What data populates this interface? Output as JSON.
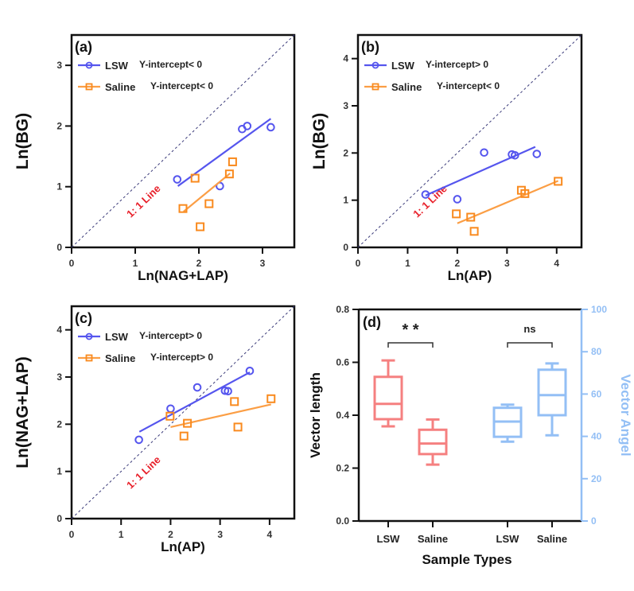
{
  "colors": {
    "lsw": "#5555ee",
    "saline": "#f98a1e",
    "saline_line": "#fb9e45",
    "one_line_dash": "#3b3b7a",
    "one_line_text": "#e8202a",
    "box_red": "#f58080",
    "box_blue": "#93bff5",
    "axis": "#111111"
  },
  "chart_data": [
    {
      "panel": "(a)",
      "type": "scatter",
      "xlabel": "Ln(NAG+LAP)",
      "ylabel": "Ln(BG)",
      "xlim": [
        0,
        3.5
      ],
      "ylim": [
        0,
        3.5
      ],
      "xticks": [
        0,
        1,
        2,
        3
      ],
      "yticks": [
        0,
        1,
        2,
        3
      ],
      "reference_line": {
        "label": "1: 1 Line",
        "slope": 1,
        "intercept": 0
      },
      "series": [
        {
          "name": "LSW",
          "marker": "circle",
          "note": "Y-intercept< 0",
          "points": [
            [
              1.66,
              1.12
            ],
            [
              2.33,
              1.01
            ],
            [
              2.68,
              1.95
            ],
            [
              2.76,
              2.0
            ],
            [
              3.13,
              1.98
            ]
          ],
          "fit": [
            [
              1.67,
              1.01
            ],
            [
              3.13,
              2.12
            ]
          ]
        },
        {
          "name": "Saline",
          "marker": "square",
          "note": "Y-intercept< 0",
          "points": [
            [
              1.94,
              1.14
            ],
            [
              1.75,
              0.64
            ],
            [
              2.02,
              0.34
            ],
            [
              2.16,
              0.72
            ],
            [
              2.48,
              1.21
            ],
            [
              2.53,
              1.41
            ]
          ],
          "fit": [
            [
              1.76,
              0.59
            ],
            [
              2.49,
              1.22
            ]
          ]
        }
      ]
    },
    {
      "panel": "(b)",
      "type": "scatter",
      "xlabel": "Ln(AP)",
      "ylabel": "Ln(BG)",
      "xlim": [
        0,
        4.5
      ],
      "ylim": [
        0,
        4.5
      ],
      "xticks": [
        0,
        1,
        2,
        3,
        4
      ],
      "yticks": [
        0,
        1,
        2,
        3,
        4
      ],
      "reference_line": {
        "label": "1: 1 Line",
        "slope": 1,
        "intercept": 0
      },
      "series": [
        {
          "name": "LSW",
          "marker": "circle",
          "note": "Y-intercept> 0",
          "points": [
            [
              1.36,
              1.12
            ],
            [
              2.0,
              1.02
            ],
            [
              2.54,
              2.01
            ],
            [
              3.1,
              1.97
            ],
            [
              3.16,
              1.95
            ],
            [
              3.6,
              1.98
            ]
          ],
          "fit": [
            [
              1.36,
              1.1
            ],
            [
              3.57,
              2.13
            ]
          ]
        },
        {
          "name": "Saline",
          "marker": "square",
          "note": "Y-intercept< 0",
          "points": [
            [
              1.98,
              0.71
            ],
            [
              2.27,
              0.64
            ],
            [
              2.34,
              0.34
            ],
            [
              3.29,
              1.21
            ],
            [
              3.36,
              1.14
            ],
            [
              4.03,
              1.4
            ]
          ],
          "fit": [
            [
              2.0,
              0.51
            ],
            [
              4.03,
              1.41
            ]
          ]
        }
      ]
    },
    {
      "panel": "(c)",
      "type": "scatter",
      "xlabel": "Ln(AP)",
      "ylabel": "Ln(NAG+LAP)",
      "xlim": [
        0,
        4.5
      ],
      "ylim": [
        0,
        4.5
      ],
      "xticks": [
        0,
        1,
        2,
        3,
        4
      ],
      "yticks": [
        0,
        1,
        2,
        3,
        4
      ],
      "reference_line": {
        "label": "1: 1 Line",
        "slope": 1,
        "intercept": 0
      },
      "series": [
        {
          "name": "LSW",
          "marker": "circle",
          "note": "Y-intercept> 0",
          "points": [
            [
              1.36,
              1.67
            ],
            [
              2.0,
              2.33
            ],
            [
              2.54,
              2.78
            ],
            [
              3.1,
              2.71
            ],
            [
              3.16,
              2.7
            ],
            [
              3.6,
              3.13
            ]
          ],
          "fit": [
            [
              1.37,
              1.84
            ],
            [
              3.6,
              3.1
            ]
          ]
        },
        {
          "name": "Saline",
          "marker": "square",
          "note": "Y-intercept> 0",
          "points": [
            [
              1.99,
              2.17
            ],
            [
              2.34,
              2.02
            ],
            [
              2.27,
              1.75
            ],
            [
              3.29,
              2.48
            ],
            [
              3.36,
              1.94
            ],
            [
              4.03,
              2.54
            ]
          ],
          "fit": [
            [
              2.0,
              1.94
            ],
            [
              4.03,
              2.42
            ]
          ]
        }
      ]
    },
    {
      "panel": "(d)",
      "type": "box",
      "xlabel": "Sample Types",
      "ylabel": "Vector length",
      "ylabel_right": "Vector Angel",
      "ylim": [
        0,
        0.8
      ],
      "ylim_right": [
        0,
        100
      ],
      "yticks": [
        "0.0",
        "0.2",
        "0.4",
        "0.6",
        "0.8"
      ],
      "yticks_right": [
        "0",
        "20",
        "40",
        "60",
        "80",
        "100"
      ],
      "categories": [
        "LSW",
        "Saline",
        "LSW",
        "Saline"
      ],
      "groups": [
        {
          "metric": "Vector length",
          "axis": "left",
          "significance": "* *",
          "boxes": [
            {
              "category": "LSW",
              "min": 0.358,
              "q1": 0.385,
              "median": 0.443,
              "q3": 0.545,
              "max": 0.607
            },
            {
              "category": "Saline",
              "min": 0.213,
              "q1": 0.253,
              "median": 0.293,
              "q3": 0.345,
              "max": 0.384
            }
          ]
        },
        {
          "metric": "Vector Angel",
          "axis": "right",
          "significance": "ns",
          "boxes": [
            {
              "category": "LSW",
              "min": 37.5,
              "q1": 39.8,
              "median": 47.0,
              "q3": 53.5,
              "max": 55.0
            },
            {
              "category": "Saline",
              "min": 40.5,
              "q1": 50.0,
              "median": 59.5,
              "q3": 71.5,
              "max": 74.5
            }
          ]
        }
      ]
    }
  ]
}
